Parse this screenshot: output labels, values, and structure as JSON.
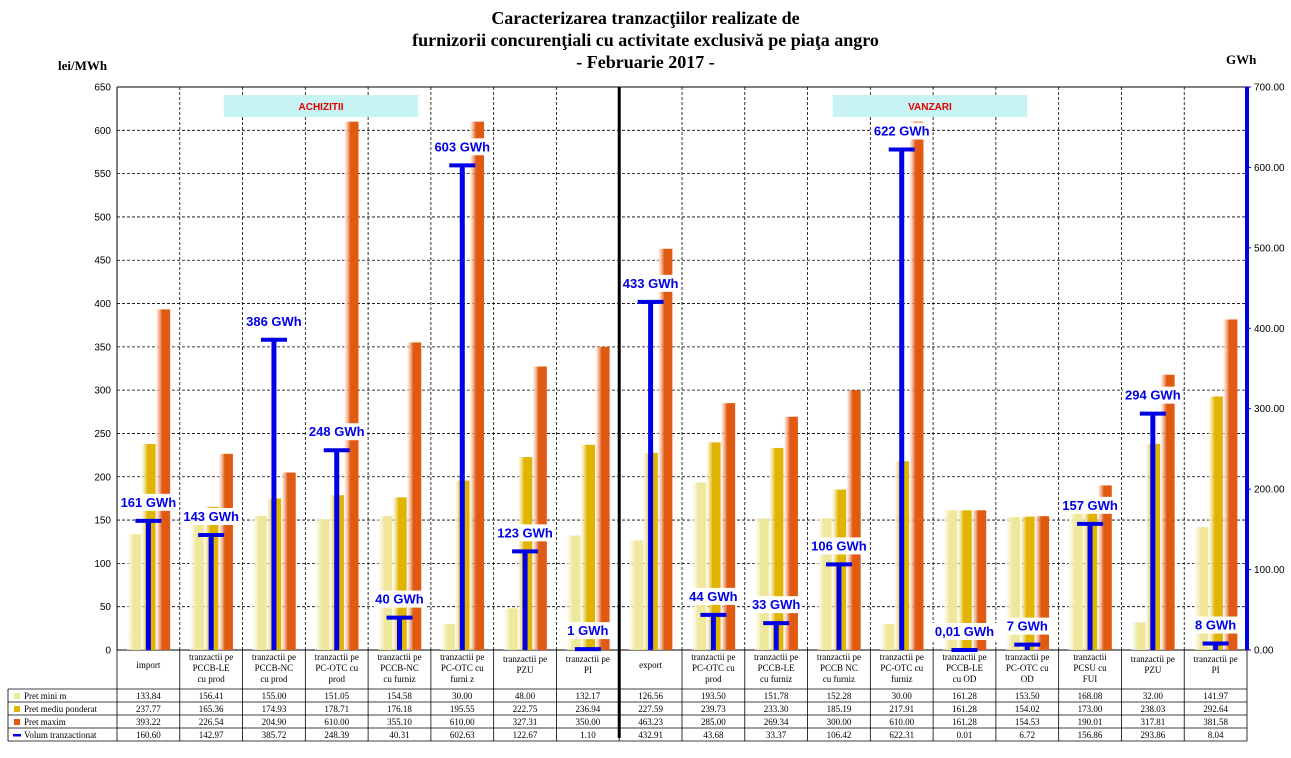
{
  "chart_data": {
    "type": "bar",
    "title_lines": [
      "Caracterizarea tranzacţiilor realizate de",
      "furnizorii concurenţiali cu activitate exclusivă pe piaţa angro",
      "- Februarie 2017 -"
    ],
    "ylabel_left": "lei/MWh",
    "ylabel_right": "GWh",
    "ylim_left": [
      0,
      650
    ],
    "ylim_right": [
      0,
      700
    ],
    "yticks_left": [
      "0",
      "50",
      "100",
      "150",
      "200",
      "250",
      "300",
      "350",
      "400",
      "450",
      "500",
      "550",
      "600",
      "650"
    ],
    "yticks_right": [
      "0.00",
      "100.00",
      "200.00",
      "300.00",
      "400.00",
      "500.00",
      "600.00",
      "700.00"
    ],
    "grid": true,
    "section_labels": [
      "ACHIZITII",
      "VANZARI"
    ],
    "categories": [
      [
        "import"
      ],
      [
        "tranzactii pe",
        "PCCB-LE",
        "cu prod"
      ],
      [
        "tranzactii pe",
        "PCCB-NC",
        "cu prod"
      ],
      [
        "tranzactii pe",
        "PC-OTC cu",
        "prod"
      ],
      [
        "tranzactii pe",
        "PCCB-NC",
        "cu furniz"
      ],
      [
        "tranzactii pe",
        "PC-OTC cu",
        "furni z"
      ],
      [
        "tranzactii pe",
        "PZU"
      ],
      [
        "tranzactii pe",
        "PI"
      ],
      [
        "export"
      ],
      [
        "tranzactii pe",
        "PC-OTC cu",
        "prod"
      ],
      [
        "tranzactii pe",
        "PCCB-LE",
        "cu furniz"
      ],
      [
        "tranzactii pe",
        "PCCB NC",
        "cu furniz"
      ],
      [
        "tranzactii pe",
        "PC-OTC cu",
        "furniz"
      ],
      [
        "tranzactii pe",
        "PCCB-LE",
        "cu OD"
      ],
      [
        "tranzactii pe",
        "PC-OTC cu",
        "OD"
      ],
      [
        "tranzactii",
        "PCSU cu",
        "FUI"
      ],
      [
        "tranzactii pe",
        "PZU"
      ],
      [
        "tranzactii pe",
        "PI"
      ]
    ],
    "series": [
      {
        "name": "Pret mini m",
        "axis": "left",
        "color": "#efe89c",
        "values": [
          133.84,
          156.41,
          155.0,
          151.05,
          154.58,
          30.0,
          48.0,
          132.17,
          126.56,
          193.5,
          151.78,
          152.28,
          30.0,
          161.28,
          153.5,
          168.08,
          32.0,
          141.97
        ],
        "labels": [
          "133.84",
          "156.41",
          "155.00",
          "151.05",
          "154.58",
          "30.00",
          "48.00",
          "132.17",
          "126.56",
          "193.50",
          "151.78",
          "152.28",
          "30.00",
          "161.28",
          "153.50",
          "168.08",
          "32.00",
          "141.97"
        ]
      },
      {
        "name": "Pret mediu ponderat",
        "axis": "left",
        "color": "#e0b400",
        "values": [
          237.77,
          165.36,
          174.93,
          178.71,
          176.18,
          195.55,
          222.75,
          236.94,
          227.59,
          239.73,
          233.3,
          185.19,
          217.91,
          161.28,
          154.02,
          173.0,
          238.03,
          292.64
        ],
        "labels": [
          "237.77",
          "165.36",
          "174.93",
          "178.71",
          "176.18",
          "195.55",
          "222.75",
          "236.94",
          "227.59",
          "239.73",
          "233.30",
          "185.19",
          "217.91",
          "161.28",
          "154.02",
          "173.00",
          "238.03",
          "292.64"
        ]
      },
      {
        "name": "Pret maxim",
        "axis": "left",
        "color": "#e05a12",
        "values": [
          393.22,
          226.54,
          204.9,
          610.0,
          355.1,
          610.0,
          327.31,
          350.0,
          463.23,
          285.0,
          269.34,
          300.0,
          610.0,
          161.28,
          154.53,
          190.01,
          317.81,
          381.58
        ],
        "labels": [
          "393.22",
          "226.54",
          "204.90",
          "610.00",
          "355.10",
          "610.00",
          "327.31",
          "350.00",
          "463.23",
          "285.00",
          "269.34",
          "300.00",
          "610.00",
          "161.28",
          "154.53",
          "190.01",
          "317.81",
          "381.58"
        ]
      },
      {
        "name": "Volum tranzactionat",
        "axis": "right",
        "color": "#0000e6",
        "values": [
          160.6,
          142.97,
          385.72,
          248.39,
          40.31,
          602.63,
          122.67,
          1.1,
          432.91,
          43.68,
          33.37,
          106.42,
          622.31,
          0.01,
          6.72,
          156.86,
          293.86,
          8.04
        ],
        "labels": [
          "160.60",
          "142.97",
          "385.72",
          "248.39",
          "40.31",
          "602.63",
          "122.67",
          "1.10",
          "432.91",
          "43.68",
          "33.37",
          "106.42",
          "622.31",
          "0.01",
          "6.72",
          "156.86",
          "293.86",
          "8.04"
        ],
        "annotations": [
          "161 GWh",
          "143 GWh",
          "386 GWh",
          "248 GWh",
          "40 GWh",
          "603 GWh",
          "123 GWh",
          "1 GWh",
          "433 GWh",
          "44 GWh",
          "33 GWh",
          "106 GWh",
          "622 GWh",
          "0,01 GWh",
          "7 GWh",
          "157 GWh",
          "294 GWh",
          "8 GWh"
        ]
      }
    ]
  }
}
